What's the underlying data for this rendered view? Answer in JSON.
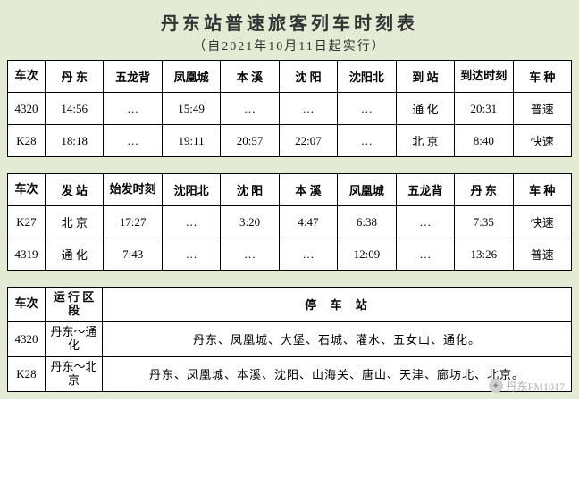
{
  "header": {
    "title": "丹东站普速旅客列车时刻表",
    "subtitle": "（自2021年10月11日起实行）"
  },
  "table1": {
    "cols": [
      "车次",
      "丹 东",
      "五龙背",
      "凤凰城",
      "本 溪",
      "沈 阳",
      "沈阳北",
      "到 站",
      "到达时刻",
      "车 种"
    ],
    "rows": [
      [
        "4320",
        "14:56",
        "…",
        "15:49",
        "…",
        "…",
        "…",
        "通 化",
        "20:31",
        "普速"
      ],
      [
        "K28",
        "18:18",
        "…",
        "19:11",
        "20:57",
        "22:07",
        "…",
        "北 京",
        "8:40",
        "快速"
      ]
    ]
  },
  "table2": {
    "cols": [
      "车次",
      "发 站",
      "始发时刻",
      "沈阳北",
      "沈 阳",
      "本 溪",
      "凤凰城",
      "五龙背",
      "丹 东",
      "车 种"
    ],
    "rows": [
      [
        "K27",
        "北 京",
        "17:27",
        "…",
        "3:20",
        "4:47",
        "6:38",
        "…",
        "7:35",
        "快速"
      ],
      [
        "4319",
        "通 化",
        "7:43",
        "…",
        "…",
        "…",
        "12:09",
        "…",
        "13:26",
        "普速"
      ]
    ]
  },
  "table3": {
    "head": {
      "c0": "车次",
      "c1": "运 行\n区 段",
      "c2": "停  车  站"
    },
    "rows": [
      {
        "num": "4320",
        "route": "丹东～通化",
        "stops": "丹东、凤凰城、大堡、石城、灌水、五女山、通化。"
      },
      {
        "num": "K28",
        "route": "丹东～北京",
        "stops": "丹东、凤凰城、本溪、沈阳、山海关、唐山、天津、廊坊北、北京。"
      }
    ]
  },
  "watermark": "丹东FM1017",
  "colors": {
    "sheet_bg": "#e3ebd4",
    "cell_bg": "#ffffff",
    "border": "#000000"
  }
}
